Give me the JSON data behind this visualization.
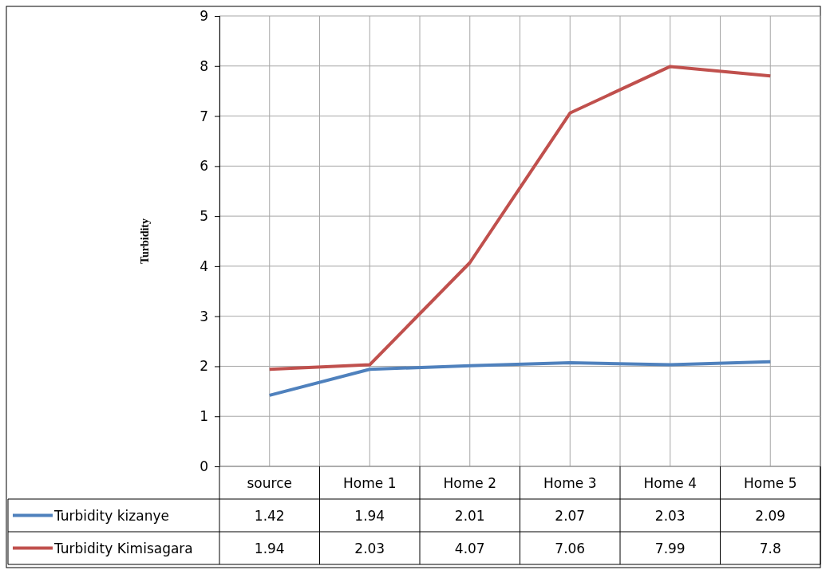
{
  "chart_data": {
    "type": "line",
    "ylabel": "Turbidity",
    "categories": [
      "source",
      "Home 1",
      "Home 2",
      "Home 3",
      "Home 4",
      "Home 5"
    ],
    "series": [
      {
        "name": "Turbidity kizanye",
        "color": "#4f81bd",
        "values": [
          1.42,
          1.94,
          2.01,
          2.07,
          2.03,
          2.09
        ]
      },
      {
        "name": "Turbidity Kimisagara",
        "color": "#c0504d",
        "values": [
          1.94,
          2.03,
          4.07,
          7.06,
          7.99,
          7.8
        ]
      }
    ],
    "ylim": [
      0,
      9
    ],
    "yticks": [
      0,
      1,
      2,
      3,
      4,
      5,
      6,
      7,
      8,
      9
    ],
    "grid": true,
    "legend": "bottom left",
    "data_labels": true,
    "marker": "none",
    "line_style": "solid"
  }
}
